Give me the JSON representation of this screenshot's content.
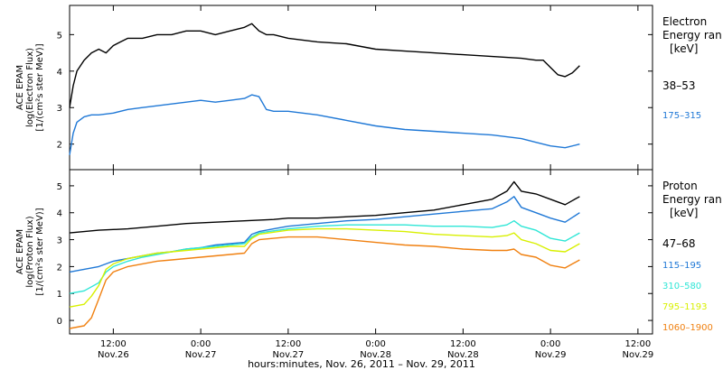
{
  "colors": {
    "black": "#000000",
    "blue": "#1f78d6",
    "cyan": "#2ee6d6",
    "yellow": "#d8f000",
    "orange": "#f08010",
    "axis": "#000000"
  },
  "xaxis": {
    "caption": "hours:minutes, Nov. 26, 2011 – Nov. 29, 2011",
    "ticks": [
      {
        "t": 12,
        "line1": "12:00",
        "line2": "Nov.26"
      },
      {
        "t": 24,
        "line1": "0:00",
        "line2": "Nov.27"
      },
      {
        "t": 36,
        "line1": "12:00",
        "line2": "Nov.27"
      },
      {
        "t": 48,
        "line1": "0:00",
        "line2": "Nov.28"
      },
      {
        "t": 60,
        "line1": "12:00",
        "line2": "Nov.28"
      },
      {
        "t": 72,
        "line1": "0:00",
        "line2": "Nov.29"
      },
      {
        "t": 84,
        "line1": "12:00",
        "line2": "Nov.29"
      }
    ]
  },
  "chart_data": [
    {
      "type": "line",
      "ylabel_lines": [
        "ACE EPAM",
        "log(Electron Flux)",
        "[1/(cm²s ster MeV)]"
      ],
      "legend_title": [
        "Electron",
        "Energy ran",
        "[keV]"
      ],
      "ylim": [
        1.3,
        5.8
      ],
      "yticks": [
        2,
        3,
        4,
        5
      ],
      "xlim": [
        6,
        86
      ],
      "series": [
        {
          "name": "38–53",
          "color": "black",
          "points": [
            [
              6,
              3.0
            ],
            [
              6.5,
              3.6
            ],
            [
              7,
              4.0
            ],
            [
              8,
              4.3
            ],
            [
              9,
              4.5
            ],
            [
              10,
              4.6
            ],
            [
              11,
              4.5
            ],
            [
              12,
              4.7
            ],
            [
              13,
              4.8
            ],
            [
              14,
              4.9
            ],
            [
              16,
              4.9
            ],
            [
              18,
              5.0
            ],
            [
              20,
              5.0
            ],
            [
              22,
              5.1
            ],
            [
              24,
              5.1
            ],
            [
              26,
              5.0
            ],
            [
              28,
              5.1
            ],
            [
              30,
              5.2
            ],
            [
              31,
              5.3
            ],
            [
              32,
              5.1
            ],
            [
              33,
              5.0
            ],
            [
              34,
              5.0
            ],
            [
              36,
              4.9
            ],
            [
              40,
              4.8
            ],
            [
              44,
              4.75
            ],
            [
              48,
              4.6
            ],
            [
              52,
              4.55
            ],
            [
              56,
              4.5
            ],
            [
              60,
              4.45
            ],
            [
              64,
              4.4
            ],
            [
              68,
              4.35
            ],
            [
              70,
              4.3
            ],
            [
              71,
              4.3
            ],
            [
              72,
              4.1
            ],
            [
              73,
              3.9
            ],
            [
              74,
              3.85
            ],
            [
              75,
              3.95
            ],
            [
              76,
              4.15
            ]
          ]
        },
        {
          "name": "175–315",
          "color": "blue",
          "points": [
            [
              6,
              1.7
            ],
            [
              6.5,
              2.3
            ],
            [
              7,
              2.6
            ],
            [
              8,
              2.75
            ],
            [
              9,
              2.8
            ],
            [
              10,
              2.8
            ],
            [
              12,
              2.85
            ],
            [
              14,
              2.95
            ],
            [
              16,
              3.0
            ],
            [
              18,
              3.05
            ],
            [
              20,
              3.1
            ],
            [
              22,
              3.15
            ],
            [
              24,
              3.2
            ],
            [
              26,
              3.15
            ],
            [
              28,
              3.2
            ],
            [
              30,
              3.25
            ],
            [
              31,
              3.35
            ],
            [
              32,
              3.3
            ],
            [
              33,
              2.95
            ],
            [
              34,
              2.9
            ],
            [
              36,
              2.9
            ],
            [
              40,
              2.8
            ],
            [
              44,
              2.65
            ],
            [
              48,
              2.5
            ],
            [
              52,
              2.4
            ],
            [
              56,
              2.35
            ],
            [
              60,
              2.3
            ],
            [
              64,
              2.25
            ],
            [
              68,
              2.15
            ],
            [
              70,
              2.05
            ],
            [
              72,
              1.95
            ],
            [
              74,
              1.9
            ],
            [
              76,
              2.0
            ]
          ]
        }
      ]
    },
    {
      "type": "line",
      "ylabel_lines": [
        "ACE EPAM",
        "log(Proton Flux)",
        "[1/(cm²s ster MeV)]"
      ],
      "legend_title": [
        "Proton",
        "Energy ran",
        "[keV]"
      ],
      "ylim": [
        -0.5,
        5.6
      ],
      "yticks": [
        0,
        1,
        2,
        3,
        4,
        5
      ],
      "xlim": [
        6,
        86
      ],
      "series": [
        {
          "name": "47–68",
          "color": "black",
          "points": [
            [
              6,
              3.25
            ],
            [
              10,
              3.35
            ],
            [
              14,
              3.4
            ],
            [
              18,
              3.5
            ],
            [
              22,
              3.6
            ],
            [
              26,
              3.65
            ],
            [
              30,
              3.7
            ],
            [
              34,
              3.75
            ],
            [
              36,
              3.8
            ],
            [
              40,
              3.8
            ],
            [
              44,
              3.85
            ],
            [
              48,
              3.9
            ],
            [
              52,
              4.0
            ],
            [
              56,
              4.1
            ],
            [
              60,
              4.3
            ],
            [
              64,
              4.5
            ],
            [
              66,
              4.8
            ],
            [
              67,
              5.15
            ],
            [
              68,
              4.8
            ],
            [
              70,
              4.7
            ],
            [
              72,
              4.5
            ],
            [
              73,
              4.4
            ],
            [
              74,
              4.3
            ],
            [
              75,
              4.45
            ],
            [
              76,
              4.6
            ]
          ]
        },
        {
          "name": "115–195",
          "color": "blue",
          "points": [
            [
              6,
              1.8
            ],
            [
              8,
              1.9
            ],
            [
              10,
              2.0
            ],
            [
              12,
              2.2
            ],
            [
              14,
              2.3
            ],
            [
              16,
              2.4
            ],
            [
              18,
              2.5
            ],
            [
              20,
              2.55
            ],
            [
              22,
              2.65
            ],
            [
              24,
              2.7
            ],
            [
              26,
              2.8
            ],
            [
              28,
              2.85
            ],
            [
              30,
              2.9
            ],
            [
              31,
              3.2
            ],
            [
              32,
              3.3
            ],
            [
              34,
              3.4
            ],
            [
              36,
              3.5
            ],
            [
              40,
              3.6
            ],
            [
              44,
              3.7
            ],
            [
              48,
              3.75
            ],
            [
              52,
              3.85
            ],
            [
              56,
              3.95
            ],
            [
              60,
              4.05
            ],
            [
              64,
              4.15
            ],
            [
              66,
              4.4
            ],
            [
              67,
              4.6
            ],
            [
              68,
              4.2
            ],
            [
              70,
              4.0
            ],
            [
              72,
              3.8
            ],
            [
              74,
              3.65
            ],
            [
              76,
              4.0
            ]
          ]
        },
        {
          "name": "310–580",
          "color": "cyan",
          "points": [
            [
              6,
              1.0
            ],
            [
              8,
              1.1
            ],
            [
              10,
              1.4
            ],
            [
              11,
              1.8
            ],
            [
              12,
              2.0
            ],
            [
              14,
              2.2
            ],
            [
              16,
              2.35
            ],
            [
              18,
              2.45
            ],
            [
              20,
              2.55
            ],
            [
              22,
              2.65
            ],
            [
              24,
              2.7
            ],
            [
              26,
              2.75
            ],
            [
              28,
              2.8
            ],
            [
              30,
              2.85
            ],
            [
              31,
              3.1
            ],
            [
              32,
              3.25
            ],
            [
              36,
              3.4
            ],
            [
              40,
              3.5
            ],
            [
              44,
              3.55
            ],
            [
              48,
              3.55
            ],
            [
              52,
              3.55
            ],
            [
              56,
              3.5
            ],
            [
              60,
              3.5
            ],
            [
              64,
              3.45
            ],
            [
              66,
              3.55
            ],
            [
              67,
              3.7
            ],
            [
              68,
              3.5
            ],
            [
              70,
              3.35
            ],
            [
              72,
              3.05
            ],
            [
              74,
              2.95
            ],
            [
              76,
              3.25
            ]
          ]
        },
        {
          "name": "795–1193",
          "color": "yellow",
          "points": [
            [
              6,
              0.5
            ],
            [
              8,
              0.6
            ],
            [
              9,
              0.9
            ],
            [
              10,
              1.3
            ],
            [
              11,
              1.9
            ],
            [
              12,
              2.1
            ],
            [
              14,
              2.3
            ],
            [
              16,
              2.4
            ],
            [
              18,
              2.5
            ],
            [
              20,
              2.55
            ],
            [
              22,
              2.6
            ],
            [
              24,
              2.65
            ],
            [
              26,
              2.7
            ],
            [
              28,
              2.75
            ],
            [
              30,
              2.75
            ],
            [
              31,
              3.05
            ],
            [
              32,
              3.2
            ],
            [
              36,
              3.35
            ],
            [
              40,
              3.4
            ],
            [
              44,
              3.4
            ],
            [
              48,
              3.35
            ],
            [
              52,
              3.3
            ],
            [
              56,
              3.2
            ],
            [
              60,
              3.15
            ],
            [
              64,
              3.1
            ],
            [
              66,
              3.15
            ],
            [
              67,
              3.25
            ],
            [
              68,
              3.0
            ],
            [
              70,
              2.85
            ],
            [
              72,
              2.6
            ],
            [
              74,
              2.55
            ],
            [
              76,
              2.85
            ]
          ]
        },
        {
          "name": "1060–1900",
          "color": "orange",
          "points": [
            [
              6,
              -0.3
            ],
            [
              8,
              -0.2
            ],
            [
              9,
              0.1
            ],
            [
              10,
              0.8
            ],
            [
              11,
              1.5
            ],
            [
              12,
              1.8
            ],
            [
              14,
              2.0
            ],
            [
              16,
              2.1
            ],
            [
              18,
              2.2
            ],
            [
              20,
              2.25
            ],
            [
              22,
              2.3
            ],
            [
              24,
              2.35
            ],
            [
              26,
              2.4
            ],
            [
              28,
              2.45
            ],
            [
              30,
              2.5
            ],
            [
              31,
              2.85
            ],
            [
              32,
              3.0
            ],
            [
              36,
              3.1
            ],
            [
              40,
              3.1
            ],
            [
              44,
              3.0
            ],
            [
              48,
              2.9
            ],
            [
              52,
              2.8
            ],
            [
              56,
              2.75
            ],
            [
              60,
              2.65
            ],
            [
              64,
              2.6
            ],
            [
              66,
              2.6
            ],
            [
              67,
              2.65
            ],
            [
              68,
              2.45
            ],
            [
              70,
              2.35
            ],
            [
              72,
              2.05
            ],
            [
              74,
              1.95
            ],
            [
              76,
              2.25
            ]
          ]
        }
      ]
    }
  ]
}
